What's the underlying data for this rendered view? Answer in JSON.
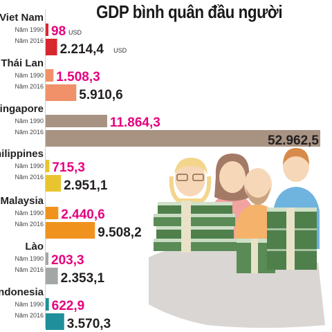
{
  "title": "GDP bình quân đầu người",
  "colors": {
    "value_1990": "#e6007e",
    "value_2016": "#231f20",
    "baseline": "#cfcfcf",
    "illustration_shadow": "#d9d6d3"
  },
  "illustration": "people-with-money-stacks-icon",
  "chart_data": {
    "type": "bar",
    "orientation": "horizontal",
    "title": "GDP bình quân đầu người",
    "xlabel": "",
    "ylabel": "",
    "grid": false,
    "legend": "none",
    "unit": "USD",
    "xlim": [
      0,
      52962.5
    ],
    "groups": [
      {
        "country": "Viet Nam",
        "color": "#d7282f",
        "bars": [
          {
            "label": "Năm 1990",
            "value": 98,
            "display": "98",
            "unit": "USD"
          },
          {
            "label": "Năm 2016",
            "value": 2214.4,
            "display": "2.214,4",
            "unit": "USD"
          }
        ]
      },
      {
        "country": "Thái Lan",
        "color": "#f0916a",
        "bars": [
          {
            "label": "Năm 1990",
            "value": 1508.3,
            "display": "1.508,3",
            "unit": ""
          },
          {
            "label": "Năm 2016",
            "value": 5910.6,
            "display": "5.910,6",
            "unit": ""
          }
        ]
      },
      {
        "country": "Singapore",
        "color": "#a89383",
        "bars": [
          {
            "label": "Năm 1990",
            "value": 11864.3,
            "display": "11.864,3",
            "unit": ""
          },
          {
            "label": "Năm 2016",
            "value": 52962.5,
            "display": "52.962,5",
            "unit": ""
          }
        ]
      },
      {
        "country": "Philippines",
        "color": "#e8c530",
        "bars": [
          {
            "label": "Năm 1990",
            "value": 715.3,
            "display": "715,3",
            "unit": ""
          },
          {
            "label": "Năm 2016",
            "value": 2951.1,
            "display": "2.951,1",
            "unit": ""
          }
        ]
      },
      {
        "country": "Malaysia",
        "color": "#f0931e",
        "bars": [
          {
            "label": "Năm 1990",
            "value": 2440.6,
            "display": "2.440,6",
            "unit": ""
          },
          {
            "label": "Năm 2016",
            "value": 9508.2,
            "display": "9.508,2",
            "unit": ""
          }
        ]
      },
      {
        "country": "Lào",
        "color": "#a3a7a6",
        "bars": [
          {
            "label": "Năm 1990",
            "value": 203.3,
            "display": "203,3",
            "unit": ""
          },
          {
            "label": "Năm 2016",
            "value": 2353.1,
            "display": "2.353,1",
            "unit": ""
          }
        ]
      },
      {
        "country": "Indonesia",
        "color": "#1f8f9c",
        "bars": [
          {
            "label": "Năm 1990",
            "value": 622.9,
            "display": "622,9",
            "unit": ""
          },
          {
            "label": "Năm 2016",
            "value": 3570.3,
            "display": "3.570,3",
            "unit": ""
          }
        ]
      }
    ]
  }
}
